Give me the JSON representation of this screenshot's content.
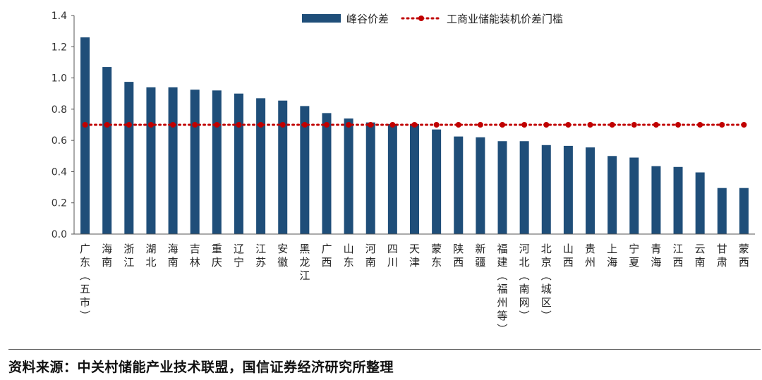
{
  "chart_data": {
    "type": "bar",
    "categories": [
      "广东（五市）",
      "海南",
      "浙江",
      "湖北",
      "海南",
      "吉林",
      "重庆",
      "辽宁",
      "江苏",
      "安徽",
      "黑龙江",
      "广西",
      "山东",
      "河南",
      "四川",
      "天津",
      "蒙东",
      "陕西",
      "新疆",
      "福建（福州等）",
      "河北（南网）",
      "北京（城区）",
      "山西",
      "贵州",
      "上海",
      "宁夏",
      "青海",
      "江西",
      "云南",
      "甘肃",
      "蒙西"
    ],
    "series": [
      {
        "name": "峰谷价差",
        "type": "bar",
        "color": "#1f4e79",
        "values": [
          1.26,
          1.07,
          0.975,
          0.94,
          0.94,
          0.925,
          0.92,
          0.9,
          0.87,
          0.855,
          0.82,
          0.775,
          0.74,
          0.715,
          0.705,
          0.705,
          0.67,
          0.625,
          0.62,
          0.595,
          0.595,
          0.57,
          0.565,
          0.555,
          0.5,
          0.49,
          0.435,
          0.43,
          0.395,
          0.295,
          0.295
        ]
      },
      {
        "name": "工商业储能装机价差门槛",
        "type": "line",
        "style": "dotted",
        "marker": "circle",
        "color": "#c00000",
        "values": [
          0.7,
          0.7,
          0.7,
          0.7,
          0.7,
          0.7,
          0.7,
          0.7,
          0.7,
          0.7,
          0.7,
          0.7,
          0.7,
          0.7,
          0.7,
          0.7,
          0.7,
          0.7,
          0.7,
          0.7,
          0.7,
          0.7,
          0.7,
          0.7,
          0.7,
          0.7,
          0.7,
          0.7,
          0.7,
          0.7,
          0.7
        ]
      }
    ],
    "ylim": [
      0,
      1.4
    ],
    "yticks": [
      "0.0",
      "0.2",
      "0.4",
      "0.6",
      "0.8",
      "1.0",
      "1.2",
      "1.4"
    ],
    "legend_position": "top-right",
    "grid": false
  },
  "source": "资料来源：中关村储能产业技术联盟，国信证券经济研究所整理"
}
